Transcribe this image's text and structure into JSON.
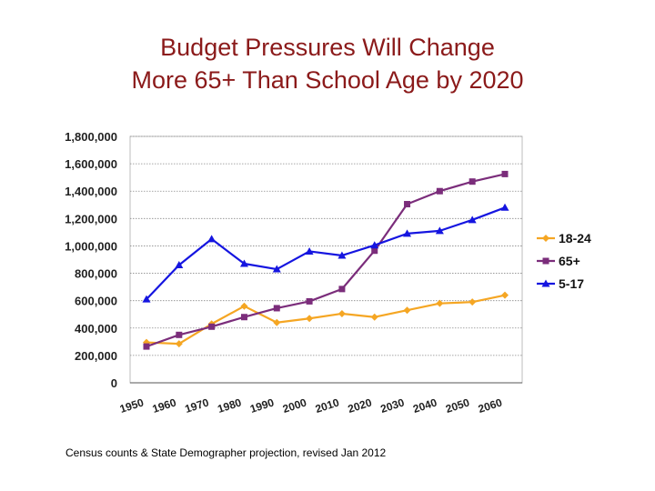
{
  "title_line1": "Budget Pressures Will Change",
  "title_line2": "More 65+ Than School Age by 2020",
  "caption": "Census counts & State Demographer projection, revised Jan 2012",
  "chart_data": {
    "type": "line",
    "title": "Budget Pressures Will Change More 65+ Than School Age by 2020",
    "xlabel": "",
    "ylabel": "",
    "x": [
      "1950",
      "1960",
      "1970",
      "1980",
      "1990",
      "2000",
      "2010",
      "2020",
      "2030",
      "2040",
      "2050",
      "2060"
    ],
    "x_tick_labels": [
      "1950",
      "1960",
      "1970",
      "1980",
      "1990",
      "2000",
      "2010",
      "2020",
      "2030",
      "2040",
      "2050",
      "2060"
    ],
    "ylim": [
      0,
      1800000
    ],
    "y_ticks": [
      0,
      200000,
      400000,
      600000,
      800000,
      1000000,
      1200000,
      1400000,
      1600000,
      1800000
    ],
    "y_tick_labels": [
      "0",
      "200,000",
      "400,000",
      "600,000",
      "800,000",
      "1,000,000",
      "1,200,000",
      "1,400,000",
      "1,600,000",
      "1,800,000"
    ],
    "grid": true,
    "legend_position": "right",
    "series": [
      {
        "name": "18-24",
        "color": "#f5a623",
        "marker": "diamond",
        "values": [
          295000,
          285000,
          430000,
          560000,
          440000,
          470000,
          505000,
          480000,
          530000,
          580000,
          590000,
          640000
        ]
      },
      {
        "name": "65+",
        "color": "#7b2d7b",
        "marker": "square",
        "values": [
          265000,
          350000,
          410000,
          480000,
          545000,
          595000,
          685000,
          965000,
          1305000,
          1400000,
          1470000,
          1525000
        ]
      },
      {
        "name": "5-17",
        "color": "#1515e0",
        "marker": "triangle",
        "values": [
          610000,
          860000,
          1050000,
          870000,
          830000,
          960000,
          930000,
          1005000,
          1090000,
          1110000,
          1190000,
          1280000
        ]
      }
    ]
  }
}
